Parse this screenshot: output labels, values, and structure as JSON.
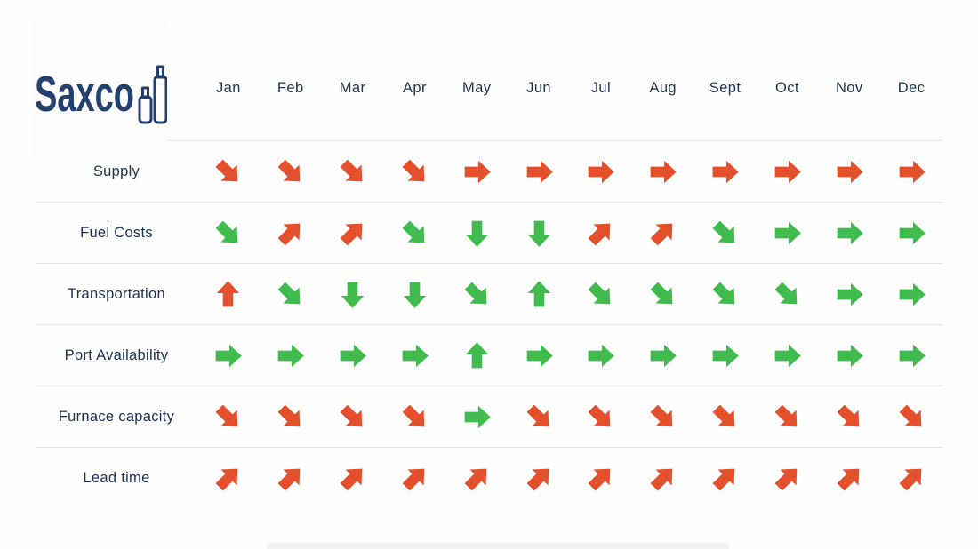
{
  "logo": {
    "text": "Saxco"
  },
  "colors": {
    "red": "#E4502C",
    "green": "#3FBC4D",
    "navy": "#1D3150",
    "logo_navy": "#24406E",
    "divider": "#E5E5E9",
    "background": "#FFFFFF"
  },
  "icons": {
    "arrow_up": "straight up arrow",
    "arrow_down": "straight down arrow",
    "arrow_right": "straight right arrow",
    "arrow_up_right": "diagonal up-right arrow",
    "arrow_down_right": "diagonal down-right arrow",
    "bottles": "two outlined glass bottles in logo"
  },
  "chart_data": {
    "type": "table",
    "description": "Monthly supplier condition trend matrix; each cell is a colored arrow (red = unfavorable, green = favorable) showing the trend direction",
    "columns": [
      "Jan",
      "Feb",
      "Mar",
      "Apr",
      "May",
      "Jun",
      "Jul",
      "Aug",
      "Sept",
      "Oct",
      "Nov",
      "Dec"
    ],
    "rows": [
      {
        "label": "Supply",
        "cells": [
          {
            "dir": "down-right",
            "color": "red"
          },
          {
            "dir": "down-right",
            "color": "red"
          },
          {
            "dir": "down-right",
            "color": "red"
          },
          {
            "dir": "down-right",
            "color": "red"
          },
          {
            "dir": "right",
            "color": "red"
          },
          {
            "dir": "right",
            "color": "red"
          },
          {
            "dir": "right",
            "color": "red"
          },
          {
            "dir": "right",
            "color": "red"
          },
          {
            "dir": "right",
            "color": "red"
          },
          {
            "dir": "right",
            "color": "red"
          },
          {
            "dir": "right",
            "color": "red"
          },
          {
            "dir": "right",
            "color": "red"
          }
        ]
      },
      {
        "label": "Fuel Costs",
        "cells": [
          {
            "dir": "down-right",
            "color": "green"
          },
          {
            "dir": "up-right",
            "color": "red"
          },
          {
            "dir": "up-right",
            "color": "red"
          },
          {
            "dir": "down-right",
            "color": "green"
          },
          {
            "dir": "down",
            "color": "green"
          },
          {
            "dir": "down",
            "color": "green"
          },
          {
            "dir": "up-right",
            "color": "red"
          },
          {
            "dir": "up-right",
            "color": "red"
          },
          {
            "dir": "down-right",
            "color": "green"
          },
          {
            "dir": "right",
            "color": "green"
          },
          {
            "dir": "right",
            "color": "green"
          },
          {
            "dir": "right",
            "color": "green"
          }
        ]
      },
      {
        "label": "Transportation",
        "cells": [
          {
            "dir": "up",
            "color": "red"
          },
          {
            "dir": "down-right",
            "color": "green"
          },
          {
            "dir": "down",
            "color": "green"
          },
          {
            "dir": "down",
            "color": "green"
          },
          {
            "dir": "down-right",
            "color": "green"
          },
          {
            "dir": "up",
            "color": "green"
          },
          {
            "dir": "down-right",
            "color": "green"
          },
          {
            "dir": "down-right",
            "color": "green"
          },
          {
            "dir": "down-right",
            "color": "green"
          },
          {
            "dir": "down-right",
            "color": "green"
          },
          {
            "dir": "right",
            "color": "green"
          },
          {
            "dir": "right",
            "color": "green"
          }
        ]
      },
      {
        "label": "Port Availability",
        "cells": [
          {
            "dir": "right",
            "color": "green"
          },
          {
            "dir": "right",
            "color": "green"
          },
          {
            "dir": "right",
            "color": "green"
          },
          {
            "dir": "right",
            "color": "green"
          },
          {
            "dir": "up",
            "color": "green"
          },
          {
            "dir": "right",
            "color": "green"
          },
          {
            "dir": "right",
            "color": "green"
          },
          {
            "dir": "right",
            "color": "green"
          },
          {
            "dir": "right",
            "color": "green"
          },
          {
            "dir": "right",
            "color": "green"
          },
          {
            "dir": "right",
            "color": "green"
          },
          {
            "dir": "right",
            "color": "green"
          }
        ]
      },
      {
        "label": "Furnace capacity",
        "cells": [
          {
            "dir": "down-right",
            "color": "red"
          },
          {
            "dir": "down-right",
            "color": "red"
          },
          {
            "dir": "down-right",
            "color": "red"
          },
          {
            "dir": "down-right",
            "color": "red"
          },
          {
            "dir": "right",
            "color": "green"
          },
          {
            "dir": "down-right",
            "color": "red"
          },
          {
            "dir": "down-right",
            "color": "red"
          },
          {
            "dir": "down-right",
            "color": "red"
          },
          {
            "dir": "down-right",
            "color": "red"
          },
          {
            "dir": "down-right",
            "color": "red"
          },
          {
            "dir": "down-right",
            "color": "red"
          },
          {
            "dir": "down-right",
            "color": "red"
          }
        ]
      },
      {
        "label": "Lead time",
        "cells": [
          {
            "dir": "up-right",
            "color": "red"
          },
          {
            "dir": "up-right",
            "color": "red"
          },
          {
            "dir": "up-right",
            "color": "red"
          },
          {
            "dir": "up-right",
            "color": "red"
          },
          {
            "dir": "up-right",
            "color": "red"
          },
          {
            "dir": "up-right",
            "color": "red"
          },
          {
            "dir": "up-right",
            "color": "red"
          },
          {
            "dir": "up-right",
            "color": "red"
          },
          {
            "dir": "up-right",
            "color": "red"
          },
          {
            "dir": "up-right",
            "color": "red"
          },
          {
            "dir": "up-right",
            "color": "red"
          },
          {
            "dir": "up-right",
            "color": "red"
          }
        ]
      }
    ]
  }
}
